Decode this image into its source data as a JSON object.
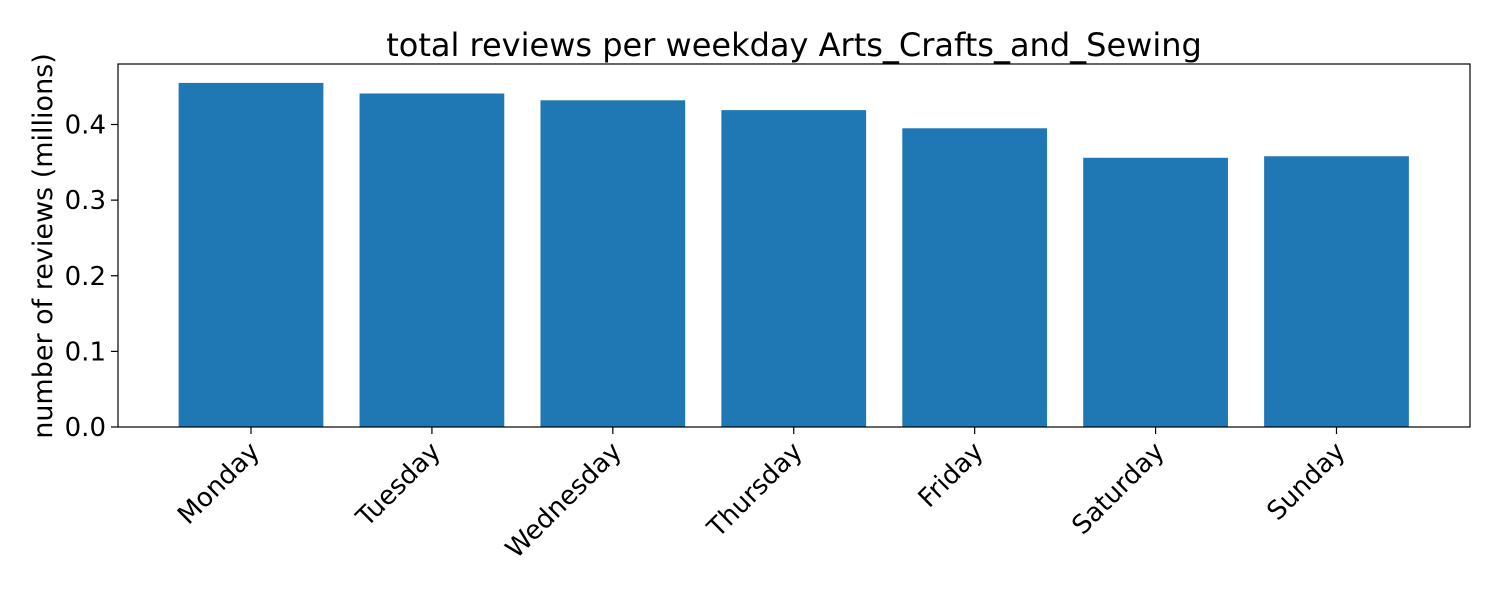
{
  "chart_data": {
    "type": "bar",
    "title": "total reviews per weekday Arts_Crafts_and_Sewing",
    "xlabel": "",
    "ylabel": "number of reviews (millions)",
    "categories": [
      "Monday",
      "Tuesday",
      "Wednesday",
      "Thursday",
      "Friday",
      "Saturday",
      "Sunday"
    ],
    "values": [
      0.455,
      0.441,
      0.432,
      0.419,
      0.395,
      0.356,
      0.358
    ],
    "ylim": [
      0,
      0.48
    ],
    "yticks": [
      0.0,
      0.1,
      0.2,
      0.3,
      0.4
    ],
    "ytick_labels": [
      "0.0",
      "0.1",
      "0.2",
      "0.3",
      "0.4"
    ],
    "bar_color": "#1f77b4",
    "grid": false,
    "legend": "none"
  }
}
